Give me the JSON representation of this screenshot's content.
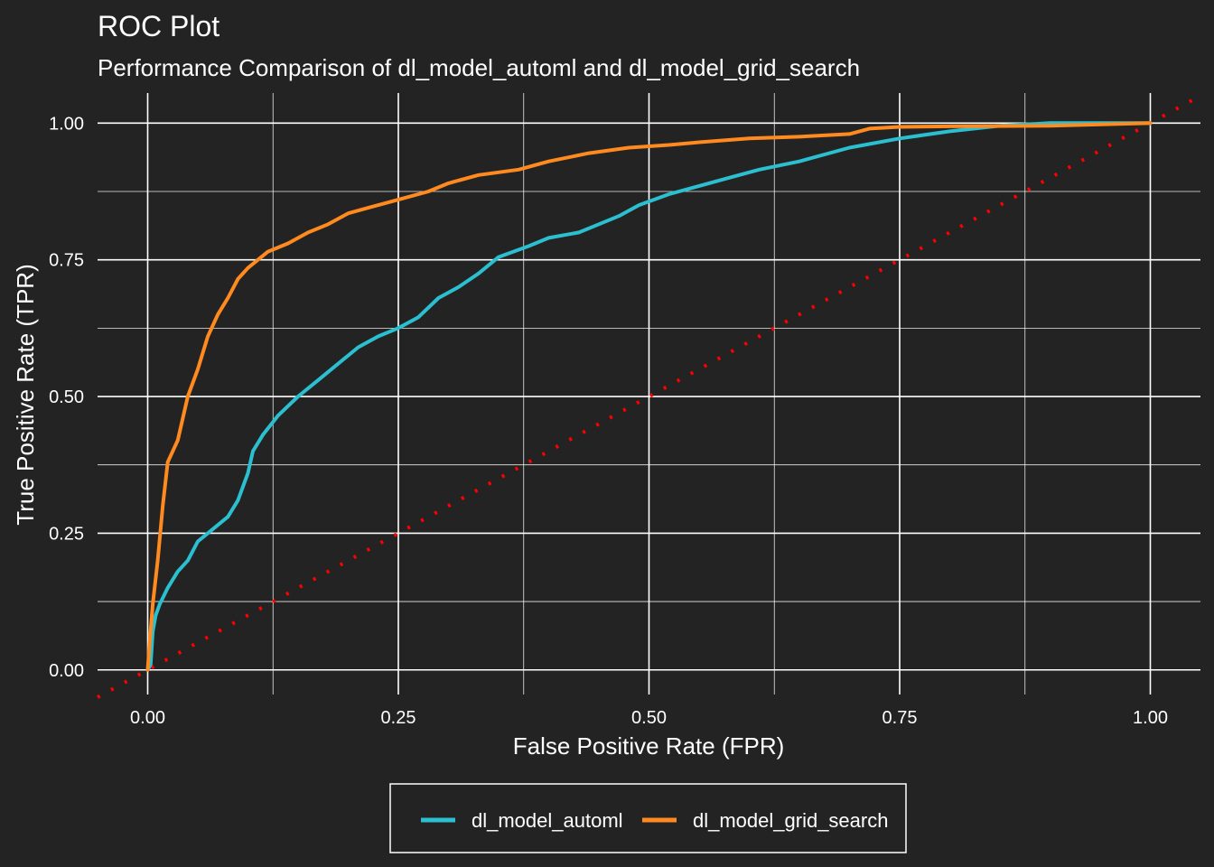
{
  "chart_data": {
    "type": "line",
    "title": "ROC Plot",
    "subtitle": "Performance Comparison of dl_model_automl and dl_model_grid_search",
    "xlabel": "False Positive Rate (FPR)",
    "ylabel": "True Positive Rate (TPR)",
    "xlim": [
      -0.05,
      1.05
    ],
    "ylim": [
      -0.045,
      1.055
    ],
    "x_ticks": [
      0,
      0.25,
      0.5,
      0.75,
      1
    ],
    "x_tick_labels": [
      "0.00",
      "0.25",
      "0.50",
      "0.75",
      "1.00"
    ],
    "y_ticks": [
      0,
      0.25,
      0.5,
      0.75,
      1
    ],
    "y_tick_labels": [
      "0.00",
      "0.25",
      "0.50",
      "0.75",
      "1.00"
    ],
    "grid": true,
    "legend_position": "bottom",
    "reference_line": {
      "type": "diagonal",
      "color": "#ff0000",
      "style": "dotted",
      "from": [
        -0.05,
        -0.05
      ],
      "to": [
        1.05,
        1.05
      ]
    },
    "series": [
      {
        "name": "dl_model_automl",
        "color": "#2bbfcf",
        "points": [
          [
            0,
            0
          ],
          [
            0.003,
            0.01
          ],
          [
            0.005,
            0.07
          ],
          [
            0.008,
            0.1
          ],
          [
            0.012,
            0.12
          ],
          [
            0.02,
            0.15
          ],
          [
            0.03,
            0.18
          ],
          [
            0.04,
            0.2
          ],
          [
            0.05,
            0.235
          ],
          [
            0.06,
            0.25
          ],
          [
            0.07,
            0.265
          ],
          [
            0.08,
            0.28
          ],
          [
            0.09,
            0.31
          ],
          [
            0.1,
            0.36
          ],
          [
            0.105,
            0.4
          ],
          [
            0.115,
            0.43
          ],
          [
            0.13,
            0.465
          ],
          [
            0.15,
            0.5
          ],
          [
            0.17,
            0.53
          ],
          [
            0.19,
            0.56
          ],
          [
            0.21,
            0.59
          ],
          [
            0.23,
            0.61
          ],
          [
            0.25,
            0.625
          ],
          [
            0.27,
            0.645
          ],
          [
            0.29,
            0.68
          ],
          [
            0.31,
            0.7
          ],
          [
            0.33,
            0.725
          ],
          [
            0.35,
            0.755
          ],
          [
            0.38,
            0.775
          ],
          [
            0.4,
            0.79
          ],
          [
            0.43,
            0.8
          ],
          [
            0.45,
            0.815
          ],
          [
            0.47,
            0.83
          ],
          [
            0.49,
            0.85
          ],
          [
            0.52,
            0.87
          ],
          [
            0.55,
            0.885
          ],
          [
            0.58,
            0.9
          ],
          [
            0.61,
            0.915
          ],
          [
            0.65,
            0.93
          ],
          [
            0.7,
            0.955
          ],
          [
            0.75,
            0.972
          ],
          [
            0.8,
            0.985
          ],
          [
            0.85,
            0.995
          ],
          [
            0.9,
            1.0
          ],
          [
            1.0,
            1.0
          ]
        ]
      },
      {
        "name": "dl_model_grid_search",
        "color": "#ff8a1f",
        "points": [
          [
            0,
            0
          ],
          [
            0.002,
            0.05
          ],
          [
            0.005,
            0.12
          ],
          [
            0.01,
            0.2
          ],
          [
            0.015,
            0.3
          ],
          [
            0.02,
            0.38
          ],
          [
            0.03,
            0.42
          ],
          [
            0.04,
            0.5
          ],
          [
            0.05,
            0.55
          ],
          [
            0.06,
            0.61
          ],
          [
            0.07,
            0.65
          ],
          [
            0.08,
            0.68
          ],
          [
            0.09,
            0.715
          ],
          [
            0.1,
            0.735
          ],
          [
            0.12,
            0.765
          ],
          [
            0.14,
            0.78
          ],
          [
            0.16,
            0.8
          ],
          [
            0.18,
            0.815
          ],
          [
            0.2,
            0.835
          ],
          [
            0.22,
            0.845
          ],
          [
            0.25,
            0.86
          ],
          [
            0.28,
            0.875
          ],
          [
            0.3,
            0.89
          ],
          [
            0.33,
            0.905
          ],
          [
            0.37,
            0.915
          ],
          [
            0.4,
            0.93
          ],
          [
            0.44,
            0.945
          ],
          [
            0.48,
            0.955
          ],
          [
            0.52,
            0.96
          ],
          [
            0.55,
            0.965
          ],
          [
            0.6,
            0.972
          ],
          [
            0.65,
            0.975
          ],
          [
            0.7,
            0.98
          ],
          [
            0.72,
            0.99
          ],
          [
            0.75,
            0.993
          ],
          [
            0.8,
            0.994
          ],
          [
            0.9,
            0.995
          ],
          [
            1.0,
            1.0
          ]
        ]
      }
    ]
  }
}
